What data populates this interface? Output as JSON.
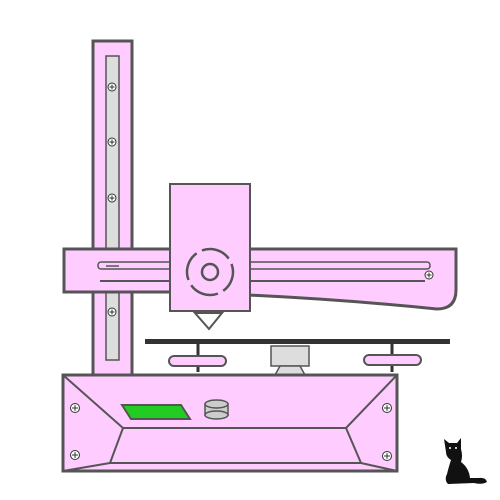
{
  "illustration": {
    "subject": "3d-printer",
    "mascot": "cat-silhouette",
    "colors": {
      "frame_fill": "#ffccff",
      "outline": "#555555",
      "rail_fill": "#dddddd",
      "bed_top": "#333333",
      "lcd_screen": "#22cc22",
      "knob": "#cccccc",
      "nozzle": "#ffffff",
      "cat": "#111111",
      "background": "#ffffff"
    },
    "icons": {
      "screw": "screw-icon",
      "knob": "control-knob-icon",
      "screen": "lcd-screen-icon",
      "cat": "cat-icon"
    }
  }
}
